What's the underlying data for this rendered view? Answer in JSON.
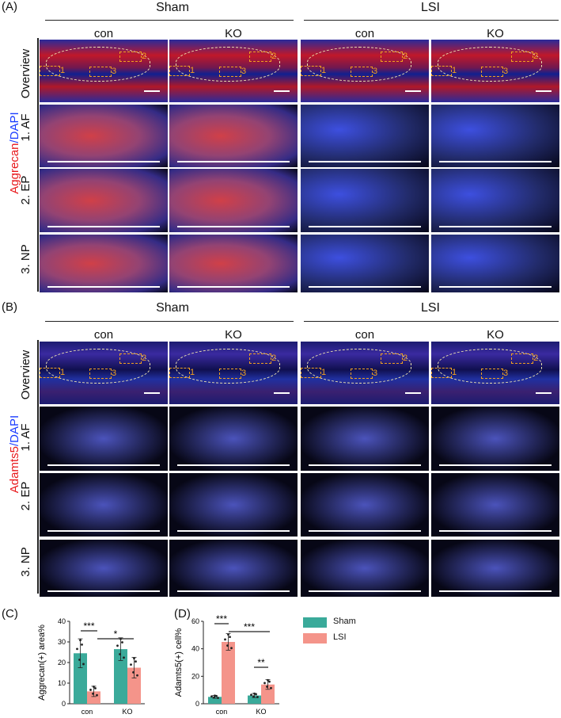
{
  "panels": {
    "A": {
      "label": "(A)",
      "groups": [
        "Sham",
        "LSI"
      ],
      "columns": [
        "con",
        "KO",
        "con",
        "KO"
      ],
      "stain_label": [
        "Aggrecan",
        "/DAPI"
      ],
      "rows": [
        "Overview",
        "1. AF",
        "2. EP",
        "3. NP"
      ],
      "box_numbers": [
        "1",
        "2",
        "3"
      ]
    },
    "B": {
      "label": "(B)",
      "groups": [
        "Sham",
        "LSI"
      ],
      "columns": [
        "con",
        "KO",
        "con",
        "KO"
      ],
      "stain_label": [
        "Adamts5",
        "/DAPI"
      ],
      "rows": [
        "Overview",
        "1. AF",
        "2. EP",
        "3. NP"
      ],
      "box_numbers": [
        "1",
        "2",
        "3"
      ]
    },
    "C": {
      "label": "(C)"
    },
    "D": {
      "label": "(D)"
    }
  },
  "legend": [
    {
      "name": "Sham",
      "color": "#3aaa9a"
    },
    {
      "name": "LSI",
      "color": "#f4948a"
    }
  ],
  "colors": {
    "stain_red": "#e8191c",
    "dapi_blue": "#1a3cff",
    "bar_sham": "#3aaa9a",
    "bar_lsi": "#f4948a"
  },
  "chart_data": [
    {
      "type": "bar",
      "ylabel": "Aggrecan(+) area%",
      "categories": [
        "con",
        "KO"
      ],
      "series": [
        {
          "name": "Sham",
          "values": [
            24.5,
            26.5
          ]
        },
        {
          "name": "LSI",
          "values": [
            6,
            17.5
          ]
        }
      ],
      "ylim": [
        0,
        40
      ],
      "yticks": [
        "0",
        "10",
        "20",
        "30",
        "40"
      ],
      "significance": [
        "***",
        "*"
      ]
    },
    {
      "type": "bar",
      "ylabel": "Adamts5(+) cell%",
      "categories": [
        "con",
        "KO"
      ],
      "series": [
        {
          "name": "Sham",
          "values": [
            5,
            6
          ]
        },
        {
          "name": "LSI",
          "values": [
            45,
            14
          ]
        }
      ],
      "ylim": [
        0,
        60
      ],
      "yticks": [
        "0",
        "20",
        "40",
        "60"
      ],
      "significance": [
        "***",
        "***",
        "**"
      ]
    }
  ]
}
